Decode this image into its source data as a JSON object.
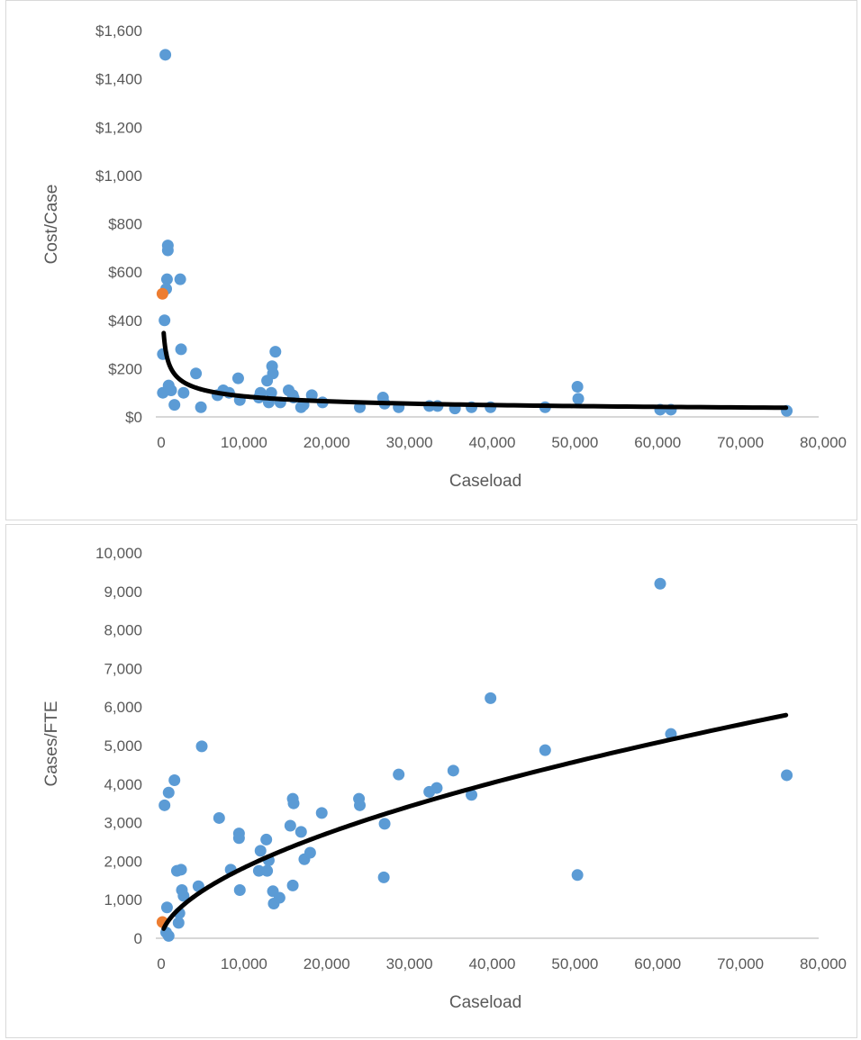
{
  "colors": {
    "primary_points": "#5b9bd5",
    "highlight_point": "#ed7d31",
    "trendline": "#000000",
    "axis": "#bfbfbf",
    "text": "#595959"
  },
  "chart_data": [
    {
      "type": "scatter",
      "xlabel": "Caseload",
      "ylabel": "Cost/Case",
      "xlim": [
        0,
        80000
      ],
      "ylim": [
        0,
        1600
      ],
      "x_ticks": [
        "0",
        "10,000",
        "20,000",
        "30,000",
        "40,000",
        "50,000",
        "60,000",
        "70,000",
        "80,000"
      ],
      "y_ticks": [
        "$0",
        "$200",
        "$400",
        "$600",
        "$800",
        "$1,000",
        "$1,200",
        "$1,400",
        "$1,600"
      ],
      "grid": false,
      "legend": "none",
      "trendline": {
        "type": "power",
        "from_x": 300,
        "to_x": 75500,
        "a": 3400,
        "b": -0.4
      },
      "series": [
        {
          "x": [
            500,
            800,
            800,
            700,
            600,
            2300,
            400,
            200,
            200,
            900,
            1200,
            2400,
            2700,
            1600,
            4200,
            4800,
            6800,
            7500,
            8200,
            9300,
            9500,
            11800,
            12000,
            12800,
            13000,
            13300,
            13500,
            13800,
            13400,
            14400,
            15400,
            15900,
            16000,
            16900,
            17200,
            18200,
            19500,
            24000,
            26800,
            27000,
            28700,
            32400,
            33400,
            35500,
            37500,
            39800,
            46400,
            50300,
            50400,
            60300,
            61600,
            75600
          ],
          "y": [
            1500,
            710,
            690,
            570,
            530,
            570,
            400,
            260,
            100,
            130,
            110,
            280,
            100,
            50,
            180,
            40,
            90,
            110,
            100,
            160,
            70,
            80,
            100,
            150,
            60,
            100,
            180,
            270,
            210,
            60,
            110,
            90,
            80,
            40,
            50,
            90,
            60,
            40,
            80,
            55,
            40,
            45,
            45,
            35,
            40,
            40,
            40,
            125,
            75,
            30,
            30,
            25
          ]
        },
        {
          "x": [
            150
          ],
          "y": [
            510
          ]
        }
      ]
    },
    {
      "type": "scatter",
      "xlabel": "Caseload",
      "ylabel": "Cases/FTE",
      "xlim": [
        0,
        80000
      ],
      "ylim": [
        0,
        10000
      ],
      "x_ticks": [
        "0",
        "10,000",
        "20,000",
        "30,000",
        "40,000",
        "50,000",
        "60,000",
        "70,000",
        "80,000"
      ],
      "y_ticks": [
        "0",
        "1,000",
        "2,000",
        "3,000",
        "4,000",
        "5,000",
        "6,000",
        "7,000",
        "8,000",
        "9,000",
        "10,000"
      ],
      "grid": false,
      "legend": "none",
      "trendline": {
        "type": "power",
        "from_x": 300,
        "to_x": 75500,
        "a": 9.6,
        "b": 0.57
      },
      "series": [
        {
          "x": [
            400,
            900,
            1600,
            1900,
            2400,
            2700,
            2500,
            2200,
            2100,
            700,
            600,
            900,
            4900,
            4500,
            7000,
            8400,
            9400,
            9400,
            9500,
            11800,
            12000,
            12700,
            12800,
            13000,
            13600,
            13500,
            14300,
            15600,
            15900,
            16000,
            15900,
            16900,
            17300,
            18000,
            19400,
            23900,
            24000,
            26900,
            27000,
            28700,
            32400,
            33300,
            35300,
            37500,
            39800,
            46400,
            50300,
            60300,
            61600,
            75600
          ],
          "y": [
            3450,
            3780,
            4100,
            1750,
            1780,
            1100,
            1250,
            650,
            400,
            800,
            150,
            60,
            4980,
            1350,
            3120,
            1780,
            2720,
            2600,
            1250,
            1750,
            2270,
            2560,
            1750,
            2020,
            900,
            1220,
            1050,
            2920,
            3620,
            3500,
            1370,
            2760,
            2050,
            2220,
            3250,
            3620,
            3450,
            1580,
            2970,
            4250,
            3800,
            3900,
            4350,
            3720,
            6230,
            4880,
            1640,
            9200,
            5300,
            4230
          ]
        },
        {
          "x": [
            150
          ],
          "y": [
            420
          ]
        }
      ]
    }
  ]
}
